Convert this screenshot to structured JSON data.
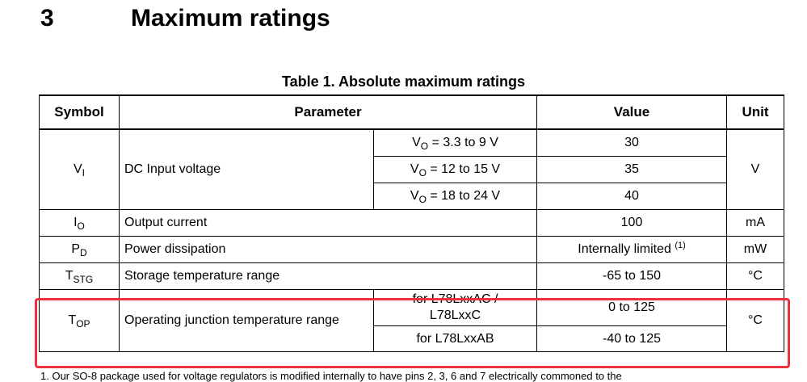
{
  "section": {
    "number": "3",
    "title": "Maximum ratings"
  },
  "table": {
    "caption": "Table 1. Absolute maximum ratings",
    "headers": {
      "symbol": "Symbol",
      "parameter": "Parameter",
      "value": "Value",
      "unit": "Unit"
    },
    "vi": {
      "symbol_base": "V",
      "symbol_sub": "I",
      "parameter": "DC Input voltage",
      "unit": "V",
      "conditions": [
        {
          "base": "V",
          "sub": "O",
          "text": " = 3.3 to 9 V",
          "value": "30"
        },
        {
          "base": "V",
          "sub": "O",
          "text": " = 12 to 15 V",
          "value": "35"
        },
        {
          "base": "V",
          "sub": "O",
          "text": " = 18 to 24 V",
          "value": "40"
        }
      ]
    },
    "io": {
      "symbol_base": "I",
      "symbol_sub": "O",
      "parameter": "Output current",
      "value": "100",
      "unit": "mA"
    },
    "pd": {
      "symbol_base": "P",
      "symbol_sub": "D",
      "parameter": "Power dissipation",
      "value": "Internally limited ",
      "note": "(1)",
      "unit": "mW"
    },
    "tstg": {
      "symbol_base": "T",
      "symbol_sub": "STG",
      "parameter": "Storage temperature range",
      "value": "-65 to 150",
      "unit": "°C"
    },
    "top": {
      "symbol_base": "T",
      "symbol_sub": "OP",
      "parameter": "Operating junction temperature range",
      "unit": "°C",
      "cond1_line1": "for L78LxxAC /",
      "cond1_line2": "L78LxxC",
      "value1": "0 to 125",
      "cond2": "for L78LxxAB",
      "value2": "-40 to 125"
    }
  },
  "footnote": "1.   Our SO-8 package used for voltage regulators is modified internally to have pins 2, 3, 6 and 7 electrically commoned to the"
}
